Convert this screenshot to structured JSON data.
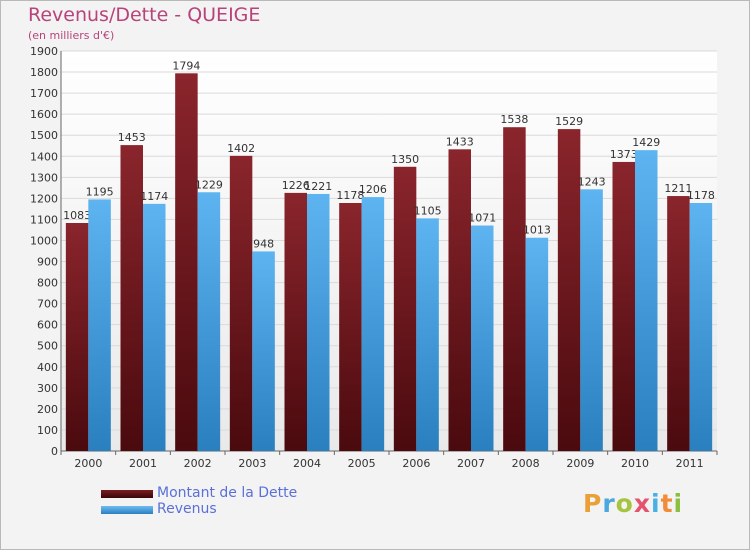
{
  "chart_data": {
    "type": "bar",
    "title": "Revenus/Dette - QUEIGE",
    "subtitle": "(en milliers d'€)",
    "categories": [
      "2000",
      "2001",
      "2002",
      "2003",
      "2004",
      "2005",
      "2006",
      "2007",
      "2008",
      "2009",
      "2010",
      "2011"
    ],
    "series": [
      {
        "name": "Montant de la Dette",
        "color": "#7a1c22",
        "values": [
          1083,
          1453,
          1794,
          1402,
          1226,
          1178,
          1350,
          1433,
          1538,
          1529,
          1373,
          1211
        ]
      },
      {
        "name": "Revenus",
        "color": "#4aa2e3",
        "values": [
          1195,
          1174,
          1229,
          948,
          1221,
          1206,
          1105,
          1071,
          1013,
          1243,
          1429,
          1178
        ]
      }
    ],
    "ylim": [
      0,
      1900
    ],
    "yticks": [
      0,
      100,
      200,
      300,
      400,
      500,
      600,
      700,
      800,
      900,
      1000,
      1100,
      1200,
      1300,
      1400,
      1500,
      1600,
      1700,
      1800,
      1900
    ],
    "grid": true,
    "legend_position": "bottom-left"
  },
  "logo": {
    "p": "P",
    "r": "r",
    "o": "o",
    "x": "x",
    "i": "i",
    "t": "t",
    "i2": "i"
  }
}
